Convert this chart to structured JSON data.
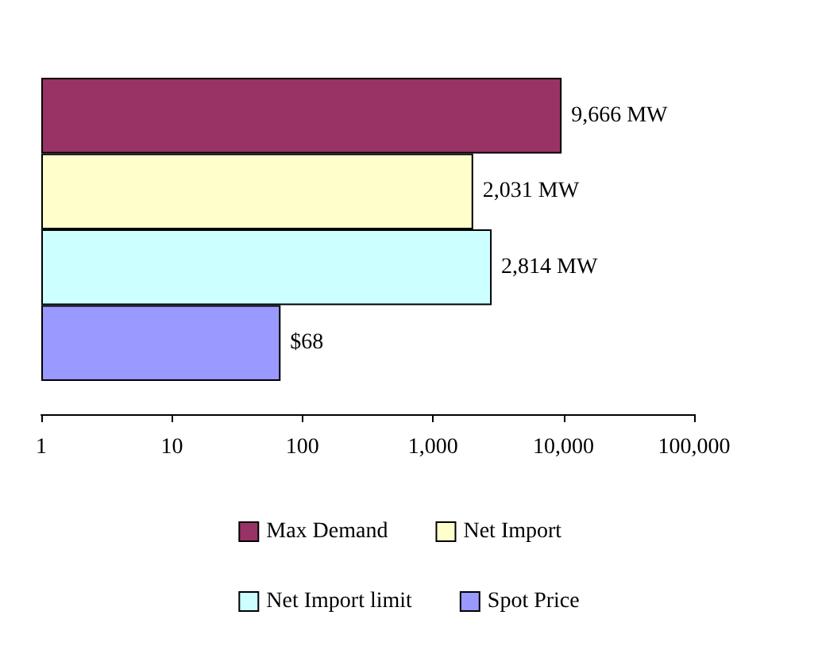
{
  "chart_data": {
    "type": "bar",
    "orientation": "horizontal",
    "log": "x",
    "categories": [
      null
    ],
    "series": [
      {
        "name": "Max Demand",
        "color": "#993366",
        "values": [
          9666
        ],
        "value_labels": [
          "9,666 MW"
        ]
      },
      {
        "name": "Net Import",
        "color": "#ffffcc",
        "values": [
          2031
        ],
        "value_labels": [
          "2,031 MW"
        ]
      },
      {
        "name": "Net Import limit",
        "color": "#ccffff",
        "values": [
          2814
        ],
        "value_labels": [
          "2,814 MW"
        ]
      },
      {
        "name": "Spot Price",
        "color": "#9999ff",
        "values": [
          68
        ],
        "value_labels": [
          "$68"
        ]
      }
    ],
    "xlim": [
      1,
      100000
    ],
    "xticks": [
      1,
      10,
      100,
      {
        "value": 1000,
        "label": "1,000"
      },
      {
        "value": 10000,
        "label": "10,000"
      },
      {
        "value": 100000,
        "label": "100,000"
      }
    ],
    "grid": false,
    "legend": "bottom"
  }
}
